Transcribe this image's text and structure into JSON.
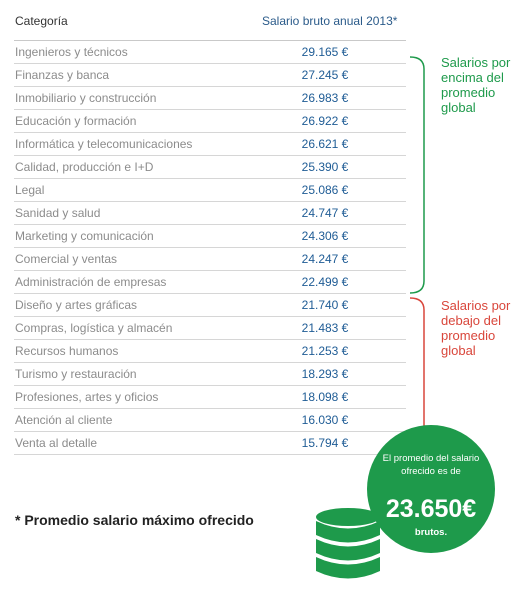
{
  "header": {
    "category_label": "Categoría",
    "salary_label": "Salario bruto anual 2013*"
  },
  "chart_data": {
    "type": "table",
    "columns": [
      "Categoría",
      "Salario bruto anual 2013*"
    ],
    "rows": [
      {
        "category": "Ingenieros y técnicos",
        "salary": "29.165 €"
      },
      {
        "category": "Finanzas y banca",
        "salary": "27.245 €"
      },
      {
        "category": "Inmobiliario y construcción",
        "salary": "26.983 €"
      },
      {
        "category": "Educación y formación",
        "salary": "26.922 €"
      },
      {
        "category": "Informática y telecomunicaciones",
        "salary": "26.621 €"
      },
      {
        "category": "Calidad, producción e I+D",
        "salary": "25.390 €"
      },
      {
        "category": "Legal",
        "salary": "25.086 €"
      },
      {
        "category": "Sanidad y salud",
        "salary": "24.747 €"
      },
      {
        "category": "Marketing y comunicación",
        "salary": "24.306 €"
      },
      {
        "category": "Comercial y ventas",
        "salary": "24.247 €"
      },
      {
        "category": "Administración de empresas",
        "salary": "22.499 €"
      },
      {
        "category": "Diseño y artes gráficas",
        "salary": "21.740 €"
      },
      {
        "category": "Compras, logística y almacén",
        "salary": "21.483 €"
      },
      {
        "category": "Recursos humanos",
        "salary": "21.253 €"
      },
      {
        "category": "Turismo y restauración",
        "salary": "18.293 €"
      },
      {
        "category": "Profesiones, artes y oficios",
        "salary": "18.098 €"
      },
      {
        "category": "Atención al cliente",
        "salary": "16.030 €"
      },
      {
        "category": "Venta al detalle",
        "salary": "15.794 €"
      }
    ]
  },
  "annotations": {
    "above_average": "Salarios por encima del promedio global",
    "below_average": "Salarios por debajo del promedio global"
  },
  "average": {
    "text": "El promedio del salario ofrecido es de",
    "value": "23.650€",
    "unit": "brutos."
  },
  "footnote": "* Promedio salario máximo ofrecido",
  "colors": {
    "green": "#1e9a4b",
    "red": "#d9463b",
    "value_blue": "#1f5c95",
    "category_gray": "#8c8c8c"
  },
  "icons": [
    "coin-stack-icon"
  ]
}
